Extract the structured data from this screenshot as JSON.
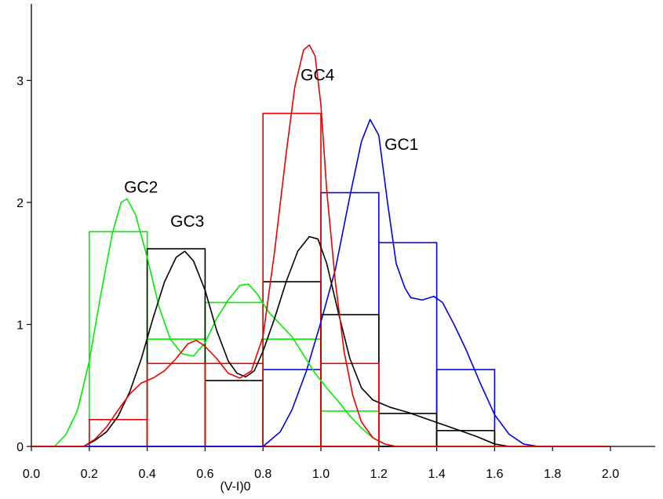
{
  "chart_data": {
    "type": "histogram",
    "title": "",
    "xlabel": "(V-I)0",
    "ylabel": "",
    "xlim": [
      0.0,
      2.2
    ],
    "ylim": [
      0,
      3.6
    ],
    "grid": false,
    "legend": "none",
    "x_ticks": [
      "0.0",
      "0.2",
      "0.4",
      "0.6",
      "0.8",
      "1.0",
      "1.2",
      "1.4",
      "1.6",
      "1.8",
      "2.0"
    ],
    "y_ticks": [
      "0",
      "1",
      "2",
      "3"
    ],
    "series": [
      {
        "name": "GC1",
        "color": "#0000ee",
        "bins": [
          [
            0.8,
            1.0,
            0.63
          ],
          [
            1.0,
            1.2,
            2.08
          ],
          [
            1.2,
            1.4,
            1.67
          ],
          [
            1.4,
            1.6,
            0.63
          ]
        ],
        "curve": [
          [
            0.0,
            0
          ],
          [
            0.8,
            0.0
          ],
          [
            0.82,
            0.04
          ],
          [
            0.86,
            0.12
          ],
          [
            0.9,
            0.3
          ],
          [
            0.95,
            0.62
          ],
          [
            1.0,
            1.02
          ],
          [
            1.05,
            1.45
          ],
          [
            1.1,
            2.05
          ],
          [
            1.14,
            2.5
          ],
          [
            1.17,
            2.68
          ],
          [
            1.2,
            2.55
          ],
          [
            1.23,
            2.0
          ],
          [
            1.26,
            1.5
          ],
          [
            1.29,
            1.3
          ],
          [
            1.31,
            1.22
          ],
          [
            1.35,
            1.2
          ],
          [
            1.39,
            1.23
          ],
          [
            1.42,
            1.18
          ],
          [
            1.46,
            1.0
          ],
          [
            1.5,
            0.8
          ],
          [
            1.55,
            0.52
          ],
          [
            1.6,
            0.26
          ],
          [
            1.65,
            0.1
          ],
          [
            1.7,
            0.02
          ],
          [
            1.75,
            0.0
          ],
          [
            2.0,
            0
          ]
        ]
      },
      {
        "name": "GC2",
        "color": "#00ee00",
        "bins": [
          [
            0.2,
            0.4,
            1.76
          ],
          [
            0.4,
            0.6,
            0.88
          ],
          [
            0.6,
            0.8,
            1.18
          ],
          [
            0.8,
            1.0,
            0.88
          ],
          [
            1.0,
            1.2,
            0.29
          ]
        ],
        "curve": [
          [
            0.0,
            0
          ],
          [
            0.08,
            0.0
          ],
          [
            0.12,
            0.1
          ],
          [
            0.16,
            0.3
          ],
          [
            0.2,
            0.7
          ],
          [
            0.24,
            1.25
          ],
          [
            0.28,
            1.75
          ],
          [
            0.31,
            2.0
          ],
          [
            0.33,
            2.03
          ],
          [
            0.36,
            1.9
          ],
          [
            0.4,
            1.55
          ],
          [
            0.44,
            1.15
          ],
          [
            0.48,
            0.88
          ],
          [
            0.52,
            0.76
          ],
          [
            0.56,
            0.74
          ],
          [
            0.6,
            0.85
          ],
          [
            0.64,
            1.05
          ],
          [
            0.68,
            1.2
          ],
          [
            0.72,
            1.32
          ],
          [
            0.75,
            1.33
          ],
          [
            0.78,
            1.25
          ],
          [
            0.82,
            1.1
          ],
          [
            0.86,
            1.0
          ],
          [
            0.9,
            0.9
          ],
          [
            0.94,
            0.75
          ],
          [
            0.98,
            0.6
          ],
          [
            1.02,
            0.48
          ],
          [
            1.06,
            0.37
          ],
          [
            1.1,
            0.25
          ],
          [
            1.14,
            0.15
          ],
          [
            1.18,
            0.07
          ],
          [
            1.22,
            0.02
          ],
          [
            1.26,
            0.0
          ],
          [
            2.0,
            0
          ]
        ]
      },
      {
        "name": "GC3",
        "color": "#000000",
        "bins": [
          [
            0.4,
            0.6,
            1.62
          ],
          [
            0.6,
            0.8,
            0.54
          ],
          [
            0.8,
            1.0,
            1.35
          ],
          [
            1.0,
            1.2,
            1.08
          ],
          [
            1.2,
            1.4,
            0.27
          ],
          [
            1.4,
            1.6,
            0.13
          ]
        ],
        "curve": [
          [
            0.0,
            0
          ],
          [
            0.18,
            0.0
          ],
          [
            0.22,
            0.05
          ],
          [
            0.26,
            0.12
          ],
          [
            0.3,
            0.25
          ],
          [
            0.34,
            0.45
          ],
          [
            0.38,
            0.72
          ],
          [
            0.42,
            1.05
          ],
          [
            0.46,
            1.35
          ],
          [
            0.5,
            1.55
          ],
          [
            0.53,
            1.6
          ],
          [
            0.56,
            1.52
          ],
          [
            0.6,
            1.28
          ],
          [
            0.64,
            0.95
          ],
          [
            0.68,
            0.7
          ],
          [
            0.71,
            0.6
          ],
          [
            0.74,
            0.57
          ],
          [
            0.77,
            0.62
          ],
          [
            0.8,
            0.78
          ],
          [
            0.84,
            1.05
          ],
          [
            0.88,
            1.35
          ],
          [
            0.92,
            1.6
          ],
          [
            0.96,
            1.72
          ],
          [
            0.99,
            1.7
          ],
          [
            1.02,
            1.5
          ],
          [
            1.06,
            1.1
          ],
          [
            1.1,
            0.72
          ],
          [
            1.14,
            0.48
          ],
          [
            1.18,
            0.38
          ],
          [
            1.24,
            0.32
          ],
          [
            1.3,
            0.28
          ],
          [
            1.36,
            0.23
          ],
          [
            1.42,
            0.18
          ],
          [
            1.48,
            0.13
          ],
          [
            1.54,
            0.08
          ],
          [
            1.6,
            0.02
          ],
          [
            1.65,
            0.0
          ],
          [
            2.0,
            0
          ]
        ]
      },
      {
        "name": "GC4",
        "color": "#ee0000",
        "bins": [
          [
            0.2,
            0.4,
            0.22
          ],
          [
            0.4,
            0.6,
            0.68
          ],
          [
            0.6,
            0.8,
            0.68
          ],
          [
            0.8,
            1.0,
            2.73
          ],
          [
            1.0,
            1.2,
            0.68
          ]
        ],
        "curve": [
          [
            0.0,
            0
          ],
          [
            0.18,
            0.0
          ],
          [
            0.22,
            0.06
          ],
          [
            0.26,
            0.16
          ],
          [
            0.3,
            0.3
          ],
          [
            0.34,
            0.43
          ],
          [
            0.38,
            0.52
          ],
          [
            0.42,
            0.56
          ],
          [
            0.46,
            0.62
          ],
          [
            0.5,
            0.72
          ],
          [
            0.54,
            0.84
          ],
          [
            0.57,
            0.87
          ],
          [
            0.6,
            0.82
          ],
          [
            0.64,
            0.72
          ],
          [
            0.68,
            0.6
          ],
          [
            0.72,
            0.56
          ],
          [
            0.76,
            0.62
          ],
          [
            0.8,
            0.9
          ],
          [
            0.84,
            1.6
          ],
          [
            0.88,
            2.4
          ],
          [
            0.91,
            2.95
          ],
          [
            0.94,
            3.25
          ],
          [
            0.96,
            3.29
          ],
          [
            0.98,
            3.2
          ],
          [
            1.0,
            2.8
          ],
          [
            1.02,
            2.1
          ],
          [
            1.05,
            1.35
          ],
          [
            1.08,
            0.78
          ],
          [
            1.11,
            0.42
          ],
          [
            1.14,
            0.2
          ],
          [
            1.18,
            0.07
          ],
          [
            1.22,
            0.02
          ],
          [
            1.26,
            0.0
          ],
          [
            2.0,
            0
          ]
        ]
      }
    ],
    "annotations": [
      {
        "text": "GC1",
        "x": 1.22,
        "y": 2.43
      },
      {
        "text": "GC2",
        "x": 0.32,
        "y": 2.08
      },
      {
        "text": "GC3",
        "x": 0.48,
        "y": 1.8
      },
      {
        "text": "GC4",
        "x": 0.93,
        "y": 3.0
      }
    ]
  }
}
